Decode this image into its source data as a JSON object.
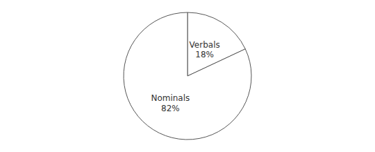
{
  "chart_data": {
    "type": "pie",
    "categories": [
      "Verbals",
      "Nominals"
    ],
    "values": [
      18,
      82
    ],
    "value_labels": [
      "18%",
      "82%"
    ],
    "data_labels": true,
    "colors": [
      "#ffffff",
      "#ffffff"
    ]
  }
}
